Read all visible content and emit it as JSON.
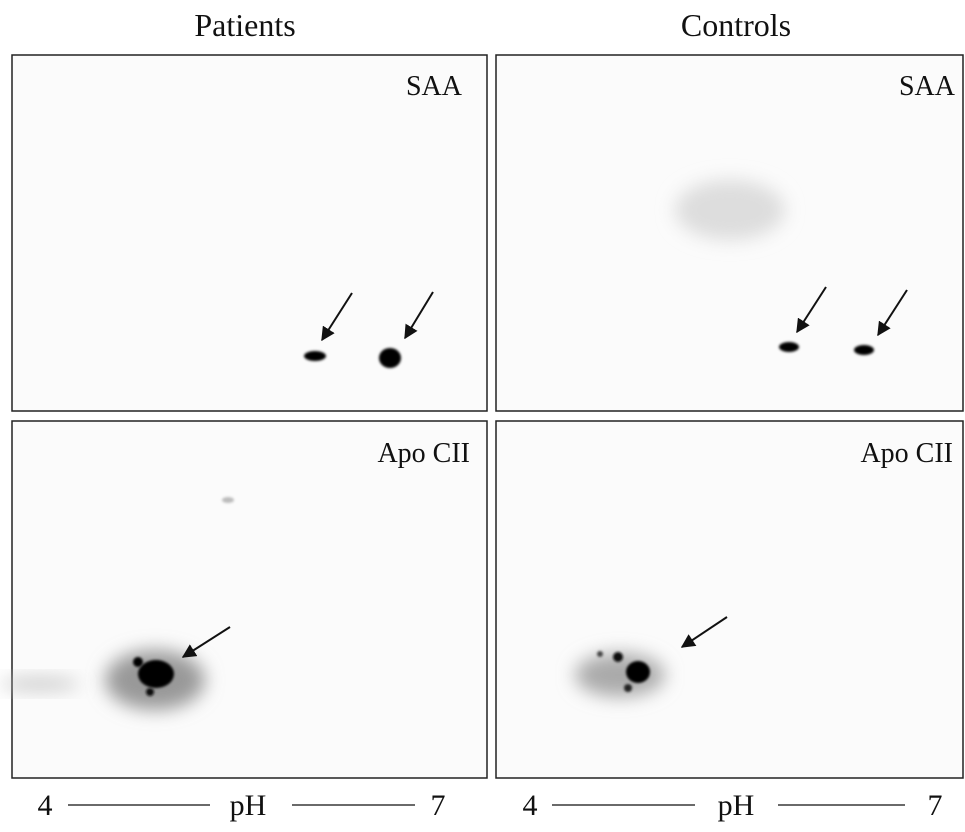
{
  "columns": [
    {
      "title": "Patients",
      "panels": [
        {
          "label": "SAA"
        },
        {
          "label": "Apo CII"
        }
      ],
      "axis": {
        "low": "4",
        "name": "pH",
        "high": "7"
      }
    },
    {
      "title": "Controls",
      "panels": [
        {
          "label": "SAA"
        },
        {
          "label": "Apo CII"
        }
      ],
      "axis": {
        "low": "4",
        "name": "pH",
        "high": "7"
      }
    }
  ]
}
